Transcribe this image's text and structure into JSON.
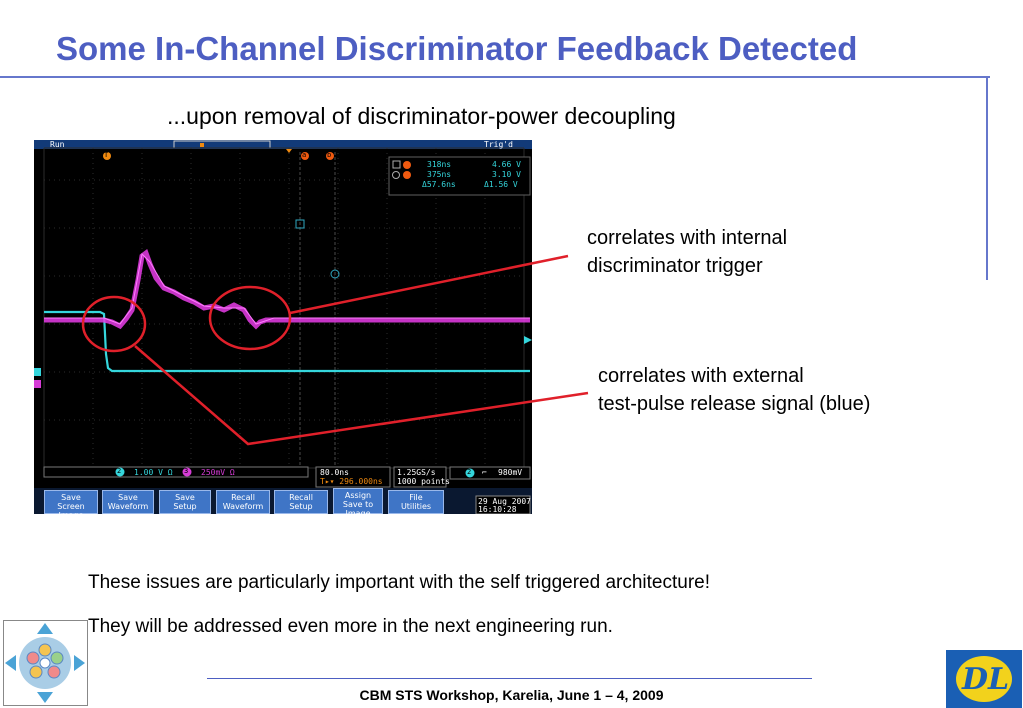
{
  "slide": {
    "title": "Some In-Channel Discriminator Feedback Detected",
    "subtitle": "...upon removal of discriminator-power decoupling",
    "annotation_internal": [
      "correlates with internal",
      "discriminator trigger"
    ],
    "annotation_external": [
      "correlates with external",
      "test-pulse release signal (blue)"
    ],
    "note_1": "These issues are particularly important with the self triggered architecture!",
    "note_2": "They will be addressed even more in the next engineering run.",
    "footer": "CBM STS Workshop, Karelia, June 1 – 4, 2009",
    "logo_letters": "DL"
  },
  "scope": {
    "status": "Run",
    "trig_status": "Trig'd",
    "cursor_a_label": "a",
    "cursor_b_label": "b",
    "trigger_marker": "T",
    "cursor_a_time": "318ns",
    "cursor_a_volt": "4.66 V",
    "cursor_b_time": "375ns",
    "cursor_b_volt": "3.10 V",
    "delta_time": "Δ57.6ns",
    "delta_volt": "Δ1.56 V",
    "ch2_label": "2",
    "ch2_scale": "1.00 V  Ω",
    "ch3_label": "3",
    "ch3_scale": "250mV  Ω",
    "timebase": "80.0ns",
    "trig_pos": "T▸▾ 296.000ns",
    "sample_rate": "1.25GS/s",
    "record_length": "1000 points",
    "trig_ch": "2",
    "trig_slope": "⌐",
    "trig_level": "980mV",
    "date": "29 Aug 2007",
    "time": "16:10:28",
    "buttons": [
      {
        "l1": "Save",
        "l2": "Screen Image"
      },
      {
        "l1": "Save",
        "l2": "Waveform"
      },
      {
        "l1": "Save",
        "l2": "Setup"
      },
      {
        "l1": "Recall",
        "l2": "Waveform"
      },
      {
        "l1": "Recall",
        "l2": "Setup"
      },
      {
        "l1": "Assign",
        "l2": "Save to Image"
      },
      {
        "l1": "File",
        "l2": "Utilities"
      }
    ]
  },
  "colors": {
    "title": "#4d5ec2",
    "ch2_cyan": "#35d6dc",
    "ch3_magenta": "#e83ce8",
    "annotation_red": "#e0202a",
    "cursor_orange": "#f08a10",
    "button_blue": "#3f75c6"
  },
  "icons": [
    "navigation-arrows-icon",
    "dl-logo-icon"
  ]
}
